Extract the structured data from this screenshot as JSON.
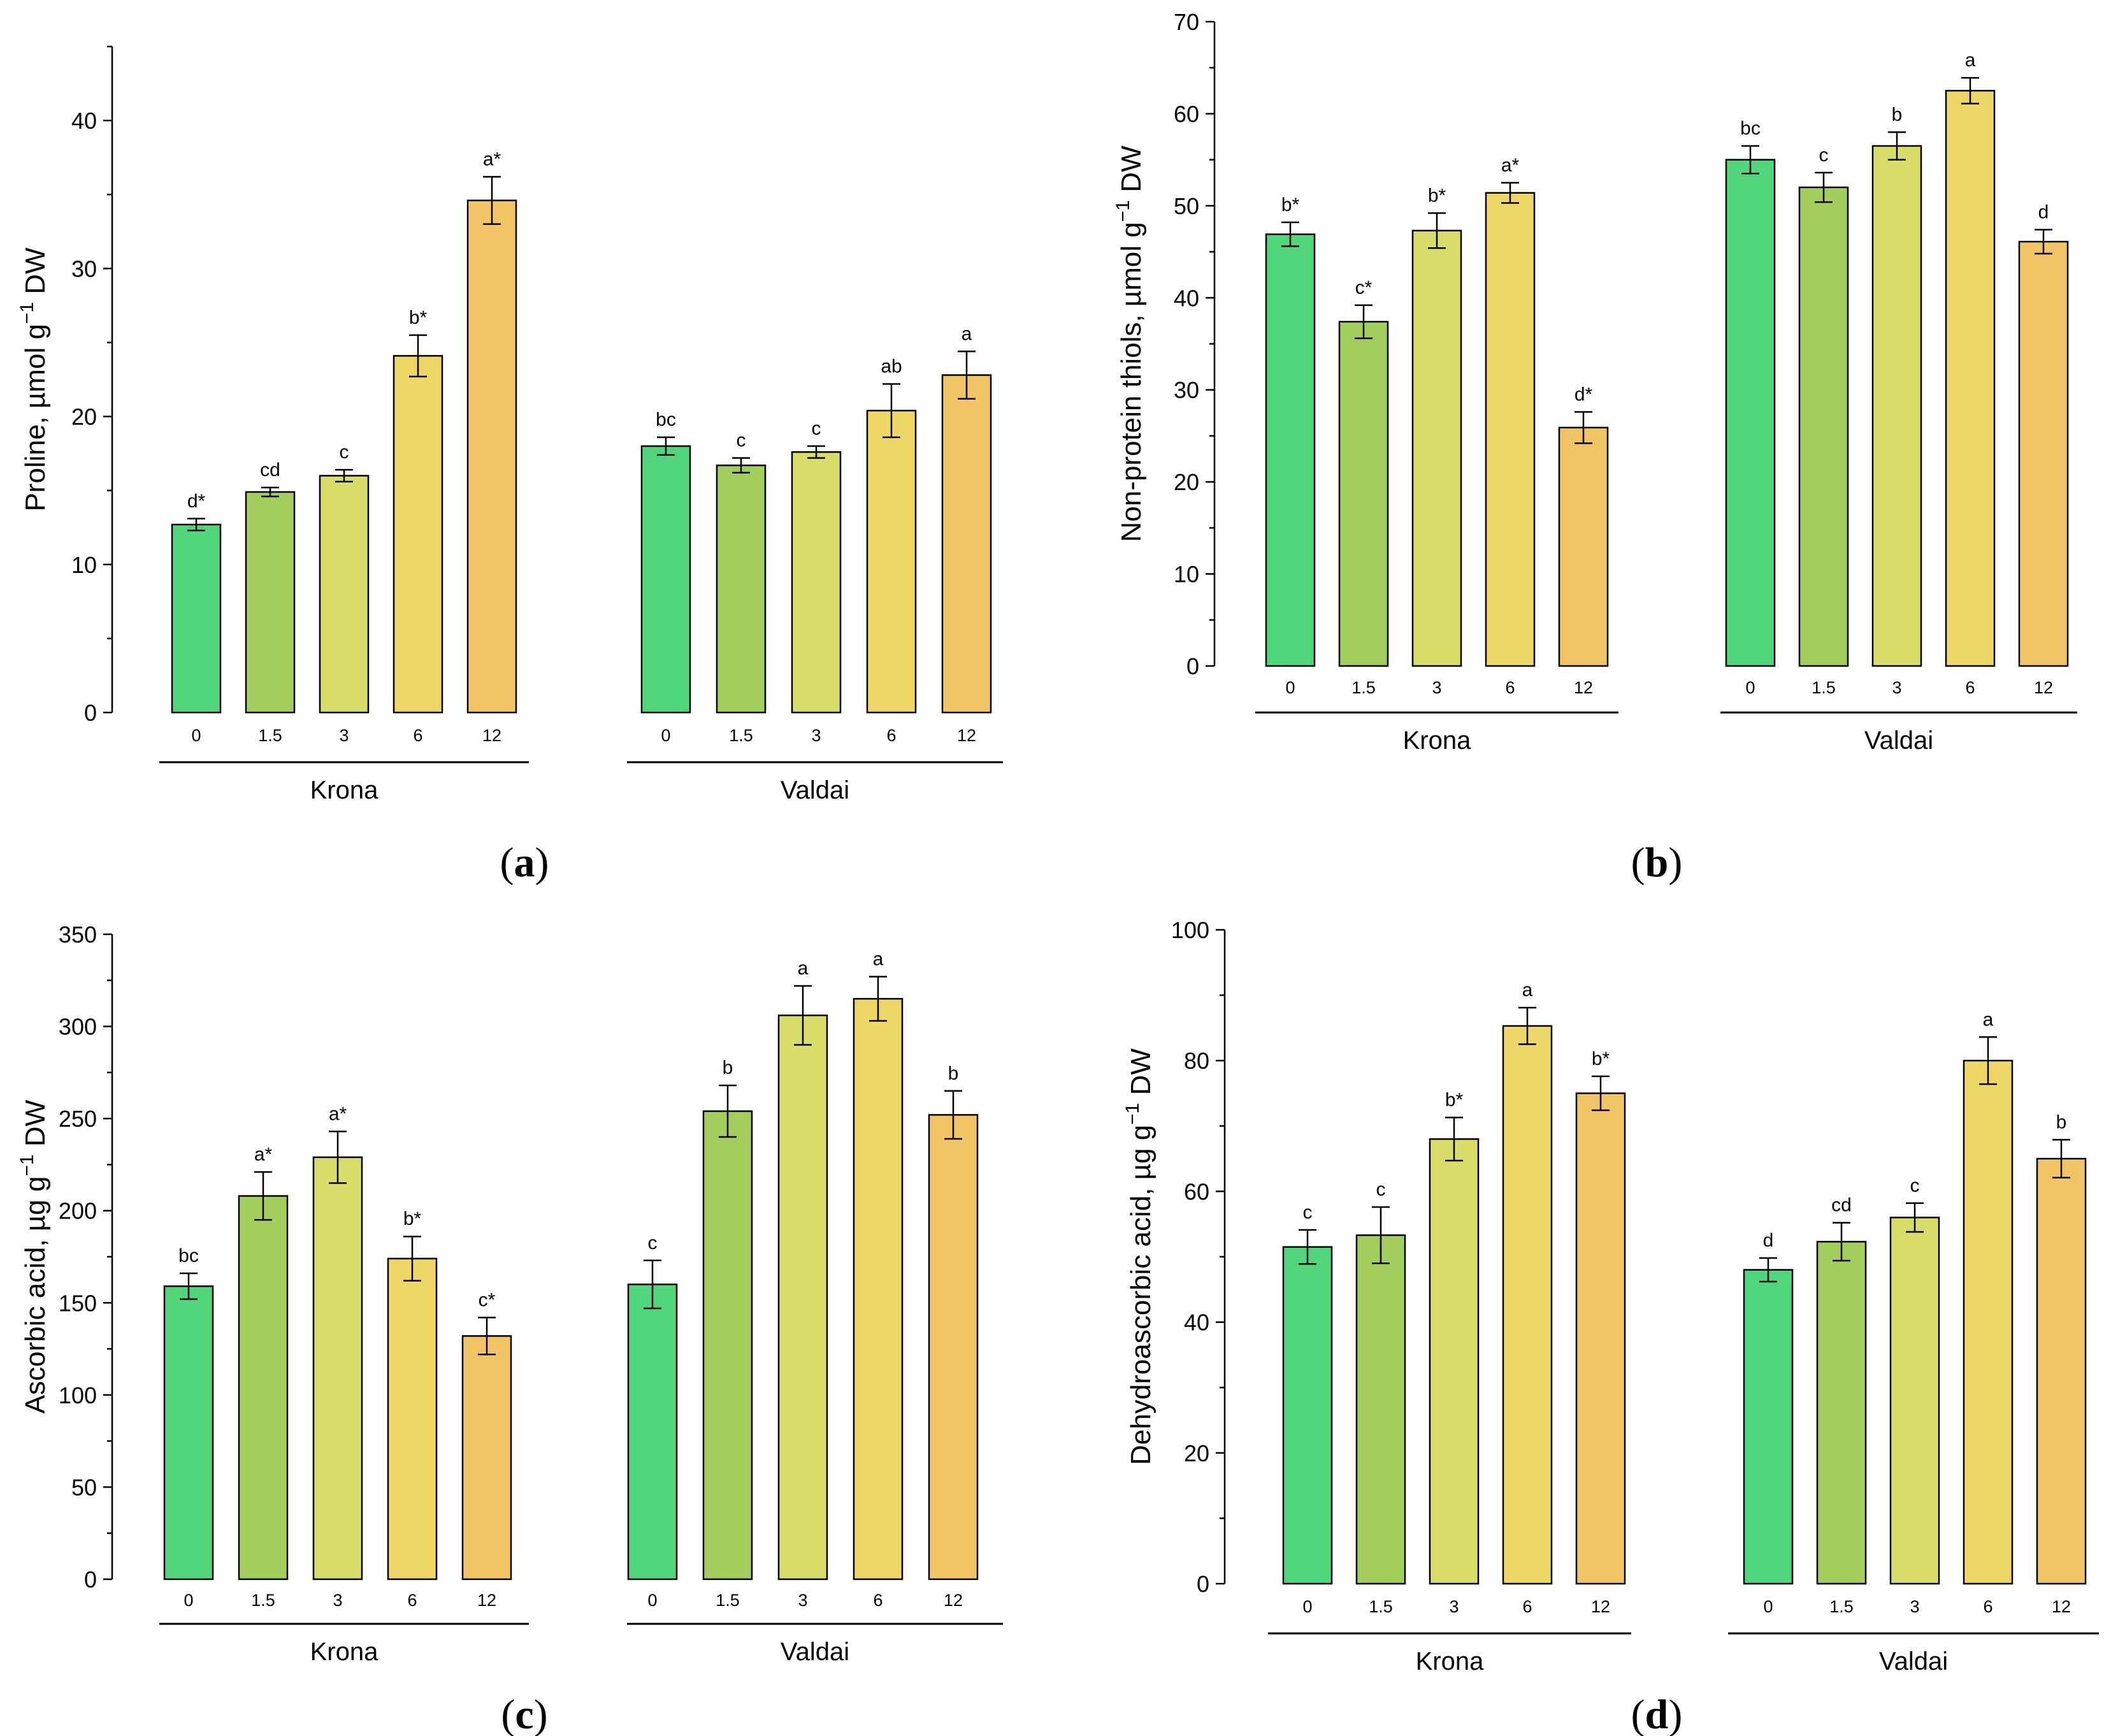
{
  "colors": [
    "#52d67c",
    "#a3cd5c",
    "#d8dd6a",
    "#eed667",
    "#f1c566"
  ],
  "chart_data": [
    {
      "type": "bar",
      "panel_label": "(a)",
      "panel_letter": "a",
      "ylabel_main": "Proline, µmol g",
      "ylabel_sup": "−1",
      "ylabel_tail": " DW",
      "ylim": [
        0,
        45
      ],
      "yticks": [
        0,
        10,
        20,
        30,
        40
      ],
      "ytick_labels": [
        "0",
        "10",
        "20",
        "30",
        "40"
      ],
      "categories": [
        "0",
        "1.5",
        "3",
        "6",
        "12"
      ],
      "groups": [
        {
          "name": "Krona",
          "values": [
            12.7,
            14.9,
            16.0,
            24.1,
            34.6
          ],
          "errors": [
            0.4,
            0.3,
            0.4,
            1.4,
            1.6
          ],
          "labels": [
            "d*",
            "cd",
            "c",
            "b*",
            "a*"
          ]
        },
        {
          "name": "Valdai",
          "values": [
            18.0,
            16.7,
            17.6,
            20.4,
            22.8
          ],
          "errors": [
            0.6,
            0.5,
            0.4,
            1.8,
            1.6
          ],
          "labels": [
            "bc",
            "c",
            "c",
            "ab",
            "a"
          ]
        }
      ]
    },
    {
      "type": "bar",
      "panel_label": "(b)",
      "panel_letter": "b",
      "ylabel_main": "Non-protein thiols, µmol g",
      "ylabel_sup": "−1",
      "ylabel_tail": " DW",
      "ylim": [
        0,
        70
      ],
      "yticks": [
        0,
        10,
        20,
        30,
        40,
        50,
        60,
        70
      ],
      "ytick_labels": [
        "0",
        "10",
        "20",
        "30",
        "40",
        "50",
        "60",
        "70"
      ],
      "categories": [
        "0",
        "1.5",
        "3",
        "6",
        "12"
      ],
      "groups": [
        {
          "name": "Krona",
          "values": [
            46.9,
            37.4,
            47.3,
            51.4,
            25.9
          ],
          "errors": [
            1.3,
            1.8,
            1.9,
            1.1,
            1.7
          ],
          "labels": [
            "b*",
            "c*",
            "b*",
            "a*",
            "d*"
          ]
        },
        {
          "name": "Valdai",
          "values": [
            55.0,
            52.0,
            56.5,
            62.5,
            46.1
          ],
          "errors": [
            1.5,
            1.6,
            1.5,
            1.4,
            1.3
          ],
          "labels": [
            "bc",
            "c",
            "b",
            "a",
            "d"
          ]
        }
      ]
    },
    {
      "type": "bar",
      "panel_label": "(c)",
      "panel_letter": "c",
      "ylabel_main": "Ascorbic acid, µg g",
      "ylabel_sup": "−1",
      "ylabel_tail": " DW",
      "ylim": [
        0,
        350
      ],
      "yticks": [
        0,
        50,
        100,
        150,
        200,
        250,
        300,
        350
      ],
      "ytick_labels": [
        "0",
        "50",
        "100",
        "150",
        "200",
        "250",
        "300",
        "350"
      ],
      "categories": [
        "0",
        "1.5",
        "3",
        "6",
        "12"
      ],
      "groups": [
        {
          "name": "Krona",
          "values": [
            159,
            208,
            229,
            174,
            132
          ],
          "errors": [
            7,
            13,
            14,
            12,
            10
          ],
          "labels": [
            "bc",
            "a*",
            "a*",
            "b*",
            "c*"
          ]
        },
        {
          "name": "Valdai",
          "values": [
            160,
            254,
            306,
            315,
            252
          ],
          "errors": [
            13,
            14,
            16,
            12,
            13
          ],
          "labels": [
            "c",
            "b",
            "a",
            "a",
            "b"
          ]
        }
      ]
    },
    {
      "type": "bar",
      "panel_label": "(d)",
      "panel_letter": "d",
      "ylabel_main": "Dehydroascorbic acid, µg g",
      "ylabel_sup": "−1",
      "ylabel_tail": " DW",
      "ylim": [
        0,
        100
      ],
      "yticks": [
        0,
        20,
        40,
        60,
        80,
        100
      ],
      "ytick_labels": [
        "0",
        "20",
        "40",
        "60",
        "80",
        "100"
      ],
      "categories": [
        "0",
        "1.5",
        "3",
        "6",
        "12"
      ],
      "groups": [
        {
          "name": "Krona",
          "values": [
            51.5,
            53.3,
            68.0,
            85.3,
            75.0
          ],
          "errors": [
            2.6,
            4.3,
            3.3,
            2.8,
            2.6
          ],
          "labels": [
            "c",
            "c",
            "b*",
            "a",
            "b*"
          ]
        },
        {
          "name": "Valdai",
          "values": [
            48.0,
            52.3,
            56.0,
            80.0,
            65.0
          ],
          "errors": [
            1.8,
            2.9,
            2.2,
            3.6,
            2.9
          ],
          "labels": [
            "d",
            "cd",
            "c",
            "a",
            "b"
          ]
        }
      ]
    }
  ]
}
